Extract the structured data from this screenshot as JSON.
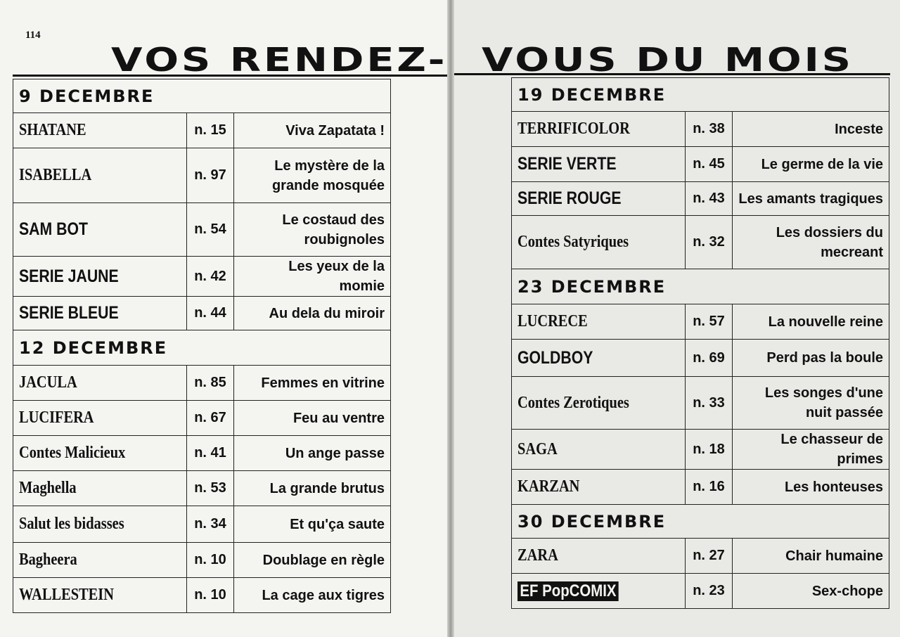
{
  "page_number": "114",
  "title_left": "VOS RENDEZ-",
  "title_right": "VOUS DU MOIS",
  "left_table": [
    {
      "section": "9 DECEMBRE",
      "rows": [
        {
          "logo": "SHATANE",
          "num": "n. 15",
          "title": "Viva Zapatata !"
        },
        {
          "logo": "ISABELLA",
          "num": "n. 97",
          "title": "Le mystère de la grande mosquée"
        },
        {
          "logo": "SAM BOT",
          "num": "n. 54",
          "title": "Le costaud des roubignoles"
        },
        {
          "logo": "SERIE JAUNE",
          "num": "n. 42",
          "title": "Les yeux de la momie"
        },
        {
          "logo": "SERIE BLEUE",
          "num": "n. 44",
          "title": "Au dela du miroir"
        }
      ]
    },
    {
      "section": "12 DECEMBRE",
      "rows": [
        {
          "logo": "JACULA",
          "num": "n. 85",
          "title": "Femmes en vitrine"
        },
        {
          "logo": "LUCIFERA",
          "num": "n. 67",
          "title": "Feu au ventre"
        },
        {
          "logo": "Contes Malicieux",
          "num": "n. 41",
          "title": "Un ange passe"
        },
        {
          "logo": "Maghella",
          "num": "n. 53",
          "title": "La grande brutus"
        },
        {
          "logo": "Salut les bidasses",
          "num": "n. 34",
          "title": "Et qu'ça saute"
        },
        {
          "logo": "Bagheera",
          "num": "n. 10",
          "title": "Doublage en règle"
        },
        {
          "logo": "WALLESTEIN",
          "num": "n. 10",
          "title": "La cage aux tigres"
        }
      ]
    }
  ],
  "right_table": [
    {
      "section": "19 DECEMBRE",
      "rows": [
        {
          "logo": "TERRIFICOLOR",
          "num": "n. 38",
          "title": "Inceste"
        },
        {
          "logo": "SERIE VERTE",
          "num": "n. 45",
          "title": "Le germe de la vie"
        },
        {
          "logo": "SERIE ROUGE",
          "num": "n. 43",
          "title": "Les amants tragiques"
        },
        {
          "logo": "Contes Satyriques",
          "num": "n. 32",
          "title": "Les dossiers du mecreant"
        }
      ]
    },
    {
      "section": "23 DECEMBRE",
      "rows": [
        {
          "logo": "LUCRECE",
          "num": "n. 57",
          "title": "La nouvelle reine"
        },
        {
          "logo": "GOLDBOY",
          "num": "n. 69",
          "title": "Perd pas la boule"
        },
        {
          "logo": "Contes Zerotiques",
          "num": "n. 33",
          "title": "Les songes d'une nuit passée"
        },
        {
          "logo": "SAGA",
          "num": "n. 18",
          "title": "Le chasseur de primes"
        },
        {
          "logo": "KARZAN",
          "num": "n. 16",
          "title": "Les honteuses"
        }
      ]
    },
    {
      "section": "30 DECEMBRE",
      "rows": [
        {
          "logo": "ZARA",
          "num": "n. 27",
          "title": "Chair humaine"
        },
        {
          "logo": "EF PopCOMIX",
          "num": "n. 23",
          "title": "Sex-chope"
        }
      ]
    }
  ]
}
